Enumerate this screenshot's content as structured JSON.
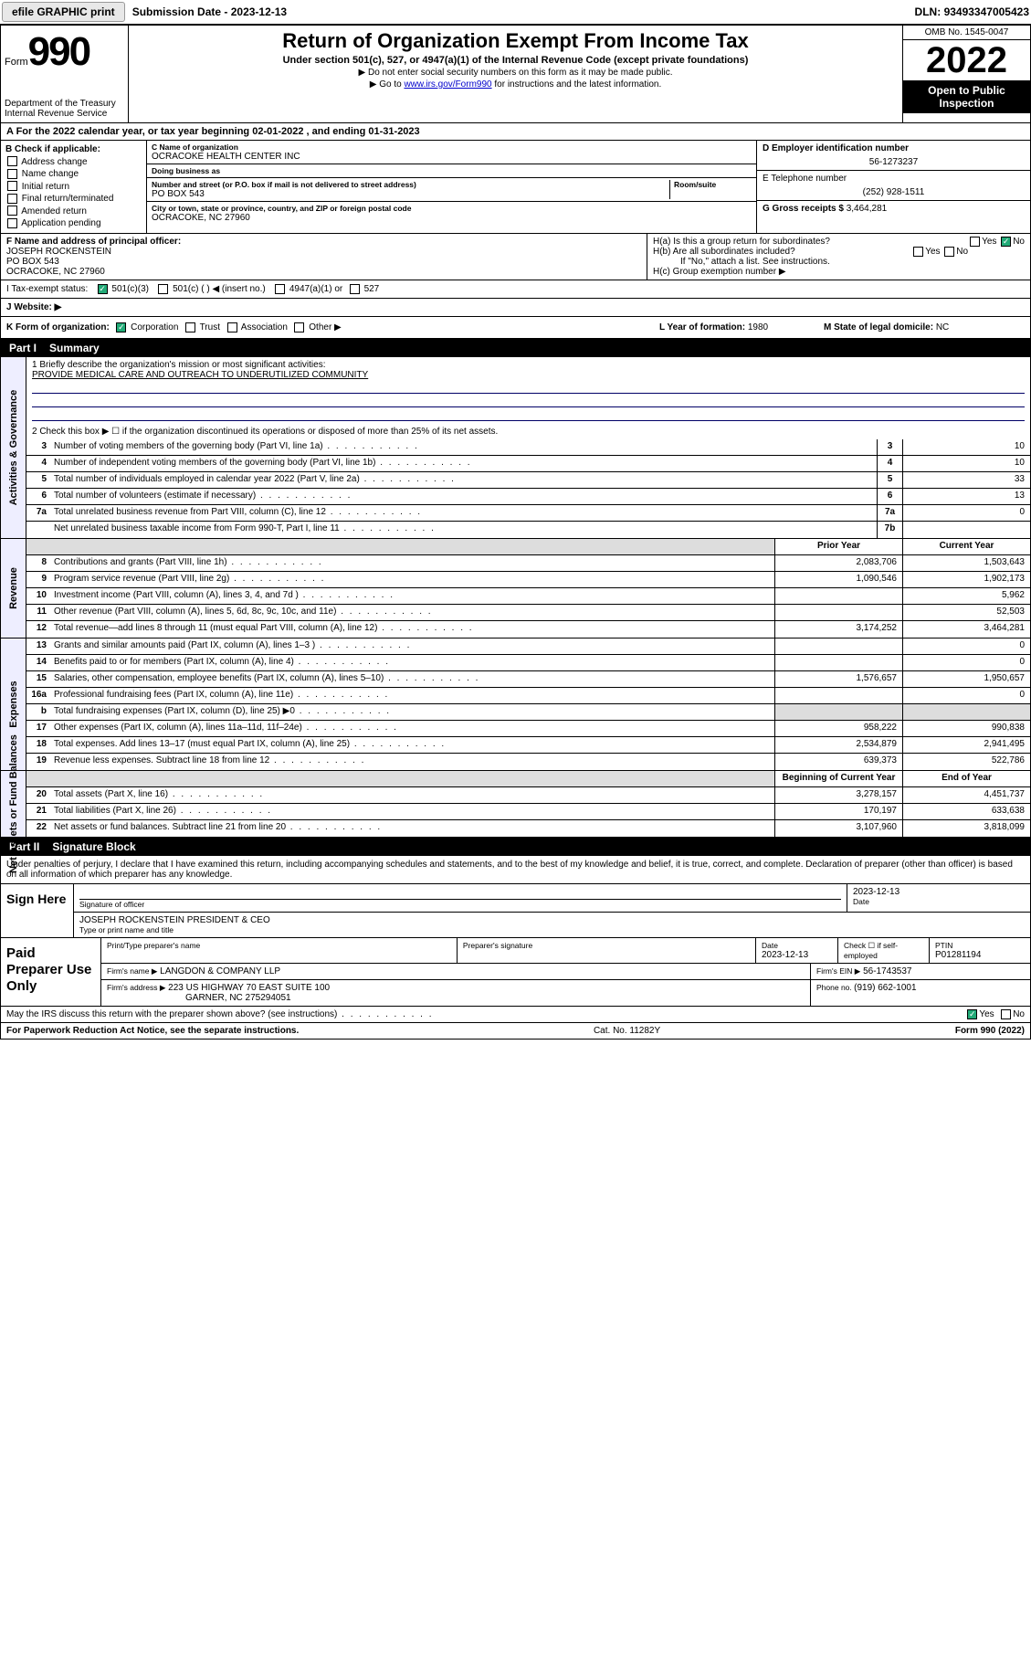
{
  "topbar": {
    "efile": "efile GRAPHIC print",
    "sub_lbl": "Submission Date - ",
    "sub_val": "2023-12-13",
    "dln_lbl": "DLN:",
    "dln_val": "93493347005423"
  },
  "header": {
    "form_word": "Form",
    "form_num": "990",
    "dept": "Department of the Treasury",
    "irs": "Internal Revenue Service",
    "title": "Return of Organization Exempt From Income Tax",
    "sub1": "Under section 501(c), 527, or 4947(a)(1) of the Internal Revenue Code (except private foundations)",
    "sub2": "▶ Do not enter social security numbers on this form as it may be made public.",
    "sub3_pre": "▶ Go to ",
    "sub3_link": "www.irs.gov/Form990",
    "sub3_post": " for instructions and the latest information.",
    "omb": "OMB No. 1545-0047",
    "year": "2022",
    "inspect": "Open to Public Inspection"
  },
  "rowA": {
    "text_pre": "A For the 2022 calendar year, or tax year beginning ",
    "begin": "02-01-2022",
    "mid": " , and ending ",
    "end": "01-31-2023"
  },
  "colB": {
    "hdr": "B Check if applicable:",
    "items": [
      "Address change",
      "Name change",
      "Initial return",
      "Final return/terminated",
      "Amended return",
      "Application pending"
    ]
  },
  "colC": {
    "name_lbl": "C Name of organization",
    "name": "OCRACOKE HEALTH CENTER INC",
    "dba_lbl": "Doing business as",
    "dba": "",
    "addr_lbl": "Number and street (or P.O. box if mail is not delivered to street address)",
    "room_lbl": "Room/suite",
    "addr": "PO BOX 543",
    "city_lbl": "City or town, state or province, country, and ZIP or foreign postal code",
    "city": "OCRACOKE, NC  27960"
  },
  "colDE": {
    "d_lbl": "D Employer identification number",
    "d_val": "56-1273237",
    "e_lbl": "E Telephone number",
    "e_val": "(252) 928-1511",
    "g_lbl": "G Gross receipts $ ",
    "g_val": "3,464,281"
  },
  "rowF": {
    "lbl": "F Name and address of principal officer:",
    "name": "JOSEPH ROCKENSTEIN",
    "addr1": "PO BOX 543",
    "addr2": "OCRACOKE, NC  27960"
  },
  "rowH": {
    "ha": "H(a)  Is this a group return for subordinates?",
    "hb": "H(b)  Are all subordinates included?",
    "hb2": "If \"No,\" attach a list. See instructions.",
    "hc": "H(c)  Group exemption number ▶",
    "yes": "Yes",
    "no": "No"
  },
  "rowI": {
    "lbl": "I   Tax-exempt status:",
    "o1": "501(c)(3)",
    "o2": "501(c) (   ) ◀ (insert no.)",
    "o3": "4947(a)(1) or",
    "o4": "527"
  },
  "rowJ": {
    "lbl": "J   Website: ▶",
    "val": ""
  },
  "rowK": {
    "lbl": "K Form of organization:",
    "o1": "Corporation",
    "o2": "Trust",
    "o3": "Association",
    "o4": "Other ▶"
  },
  "rowL": {
    "lbl": "L Year of formation: ",
    "val": "1980"
  },
  "rowM": {
    "lbl": "M State of legal domicile: ",
    "val": "NC"
  },
  "part1": {
    "num": "Part I",
    "title": "Summary"
  },
  "gov": {
    "tab": "Activities & Governance",
    "l1_lbl": "1  Briefly describe the organization's mission or most significant activities:",
    "l1_val": "PROVIDE MEDICAL CARE AND OUTREACH TO UNDERUTILIZED COMMUNITY",
    "l2": "2  Check this box ▶ ☐  if the organization discontinued its operations or disposed of more than 25% of its net assets.",
    "rows": [
      {
        "n": "3",
        "d": "Number of voting members of the governing body (Part VI, line 1a)",
        "nn": "3",
        "v": "10"
      },
      {
        "n": "4",
        "d": "Number of independent voting members of the governing body (Part VI, line 1b)",
        "nn": "4",
        "v": "10"
      },
      {
        "n": "5",
        "d": "Total number of individuals employed in calendar year 2022 (Part V, line 2a)",
        "nn": "5",
        "v": "33"
      },
      {
        "n": "6",
        "d": "Total number of volunteers (estimate if necessary)",
        "nn": "6",
        "v": "13"
      },
      {
        "n": "7a",
        "d": "Total unrelated business revenue from Part VIII, column (C), line 12",
        "nn": "7a",
        "v": "0"
      },
      {
        "n": "",
        "d": "Net unrelated business taxable income from Form 990-T, Part I, line 11",
        "nn": "7b",
        "v": ""
      }
    ]
  },
  "rev": {
    "tab": "Revenue",
    "hdr_prior": "Prior Year",
    "hdr_curr": "Current Year",
    "rows": [
      {
        "n": "8",
        "d": "Contributions and grants (Part VIII, line 1h)",
        "p": "2,083,706",
        "c": "1,503,643"
      },
      {
        "n": "9",
        "d": "Program service revenue (Part VIII, line 2g)",
        "p": "1,090,546",
        "c": "1,902,173"
      },
      {
        "n": "10",
        "d": "Investment income (Part VIII, column (A), lines 3, 4, and 7d )",
        "p": "",
        "c": "5,962"
      },
      {
        "n": "11",
        "d": "Other revenue (Part VIII, column (A), lines 5, 6d, 8c, 9c, 10c, and 11e)",
        "p": "",
        "c": "52,503"
      },
      {
        "n": "12",
        "d": "Total revenue—add lines 8 through 11 (must equal Part VIII, column (A), line 12)",
        "p": "3,174,252",
        "c": "3,464,281"
      }
    ]
  },
  "exp": {
    "tab": "Expenses",
    "rows": [
      {
        "n": "13",
        "d": "Grants and similar amounts paid (Part IX, column (A), lines 1–3 )",
        "p": "",
        "c": "0"
      },
      {
        "n": "14",
        "d": "Benefits paid to or for members (Part IX, column (A), line 4)",
        "p": "",
        "c": "0"
      },
      {
        "n": "15",
        "d": "Salaries, other compensation, employee benefits (Part IX, column (A), lines 5–10)",
        "p": "1,576,657",
        "c": "1,950,657"
      },
      {
        "n": "16a",
        "d": "Professional fundraising fees (Part IX, column (A), line 11e)",
        "p": "",
        "c": "0"
      },
      {
        "n": "b",
        "d": "Total fundraising expenses (Part IX, column (D), line 25) ▶0",
        "p": "shade",
        "c": "shade"
      },
      {
        "n": "17",
        "d": "Other expenses (Part IX, column (A), lines 11a–11d, 11f–24e)",
        "p": "958,222",
        "c": "990,838"
      },
      {
        "n": "18",
        "d": "Total expenses. Add lines 13–17 (must equal Part IX, column (A), line 25)",
        "p": "2,534,879",
        "c": "2,941,495"
      },
      {
        "n": "19",
        "d": "Revenue less expenses. Subtract line 18 from line 12",
        "p": "639,373",
        "c": "522,786"
      }
    ]
  },
  "net": {
    "tab": "Net Assets or Fund Balances",
    "hdr_begin": "Beginning of Current Year",
    "hdr_end": "End of Year",
    "rows": [
      {
        "n": "20",
        "d": "Total assets (Part X, line 16)",
        "p": "3,278,157",
        "c": "4,451,737"
      },
      {
        "n": "21",
        "d": "Total liabilities (Part X, line 26)",
        "p": "170,197",
        "c": "633,638"
      },
      {
        "n": "22",
        "d": "Net assets or fund balances. Subtract line 21 from line 20",
        "p": "3,107,960",
        "c": "3,818,099"
      }
    ]
  },
  "part2": {
    "num": "Part II",
    "title": "Signature Block"
  },
  "sig": {
    "decl": "Under penalties of perjury, I declare that I have examined this return, including accompanying schedules and statements, and to the best of my knowledge and belief, it is true, correct, and complete. Declaration of preparer (other than officer) is based on all information of which preparer has any knowledge.",
    "sign_here": "Sign Here",
    "sig_of": "Signature of officer",
    "date": "2023-12-13",
    "date_lbl": "Date",
    "name": "JOSEPH ROCKENSTEIN  PRESIDENT & CEO",
    "name_lbl": "Type or print name and title"
  },
  "prep": {
    "label": "Paid Preparer Use Only",
    "c1": "Print/Type preparer's name",
    "c2": "Preparer's signature",
    "c3_lbl": "Date",
    "c3_val": "2023-12-13",
    "c4": "Check ☐ if self-employed",
    "c5_lbl": "PTIN",
    "c5_val": "P01281194",
    "firm_lbl": "Firm's name    ▶",
    "firm_val": "LANGDON & COMPANY LLP",
    "ein_lbl": "Firm's EIN ▶",
    "ein_val": "56-1743537",
    "addr_lbl": "Firm's address ▶",
    "addr_val1": "223 US HIGHWAY 70 EAST SUITE 100",
    "addr_val2": "GARNER, NC  275294051",
    "phone_lbl": "Phone no. ",
    "phone_val": "(919) 662-1001"
  },
  "may": {
    "q": "May the IRS discuss this return with the preparer shown above? (see instructions)",
    "yes": "Yes",
    "no": "No"
  },
  "foot": {
    "l": "For Paperwork Reduction Act Notice, see the separate instructions.",
    "m": "Cat. No. 11282Y",
    "r": "Form 990 (2022)"
  }
}
